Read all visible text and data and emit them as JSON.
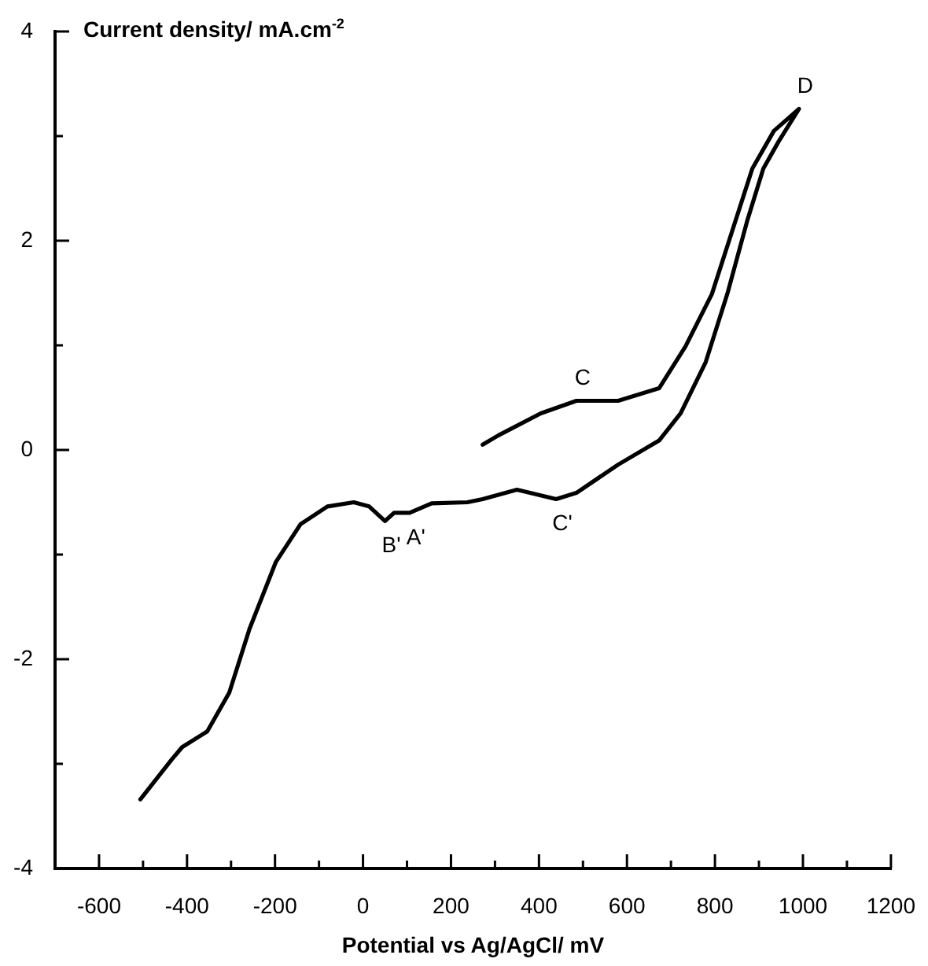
{
  "chart_data": {
    "type": "line",
    "xlabel": "Potential vs Ag/AgCl/ mV",
    "ylabel": "Current density/ mA.cm$^{-2}$",
    "xlim": [
      -700,
      1200
    ],
    "ylim": [
      -4,
      4
    ],
    "xticks": [
      -600,
      {
        "value": -500,
        "label": null
      },
      -400,
      {
        "value": -300,
        "label": null
      },
      -200,
      {
        "value": -100,
        "label": null
      },
      0,
      {
        "value": 100,
        "label": null
      },
      200,
      {
        "value": 300,
        "label": null
      },
      400,
      {
        "value": 500,
        "label": null
      },
      600,
      {
        "value": 700,
        "label": null
      },
      800,
      {
        "value": 900,
        "label": null
      },
      1000,
      {
        "value": 1100,
        "label": null
      },
      1200
    ],
    "yticks": [
      -4,
      {
        "value": -3,
        "label": null
      },
      -2,
      {
        "value": -1,
        "label": null
      },
      0,
      {
        "value": 1,
        "label": null
      },
      2,
      {
        "value": 3,
        "label": null
      },
      4
    ],
    "marker": "none",
    "line_style": "solid",
    "series": [
      {
        "color": "#000000",
        "x": [
          -506,
          -435,
          -411,
          -354,
          -304,
          -258,
          -198,
          -142,
          -81,
          -21,
          14,
          50,
          71,
          106,
          156,
          237,
          272,
          350,
          439,
          485,
          580,
          673,
          722,
          779,
          828,
          874,
          910,
          945,
          991,
          934,
          885,
          839,
          793,
          733,
          673,
          580,
          485,
          404,
          308,
          272
        ],
        "values": [
          -3.34,
          -2.96,
          -2.84,
          -2.69,
          -2.32,
          -1.71,
          -1.07,
          -0.71,
          -0.54,
          -0.5,
          -0.54,
          -0.68,
          -0.6,
          -0.6,
          -0.51,
          -0.5,
          -0.47,
          -0.38,
          -0.47,
          -0.41,
          -0.14,
          0.09,
          0.35,
          0.84,
          1.49,
          2.2,
          2.69,
          2.95,
          3.26,
          3.05,
          2.69,
          2.09,
          1.49,
          0.99,
          0.59,
          0.47,
          0.47,
          0.35,
          0.14,
          0.05
        ]
      }
    ],
    "annotations": [
      {
        "text": "D",
        "x": 991,
        "y": 3.26
      },
      {
        "text": "C",
        "x": 485,
        "y": 0.47
      },
      {
        "text": "C'",
        "x": 439,
        "y": -0.47
      },
      {
        "text": "B'",
        "x": 50,
        "y": -0.68
      },
      {
        "text": "A'",
        "x": 106,
        "y": -0.6
      }
    ]
  }
}
